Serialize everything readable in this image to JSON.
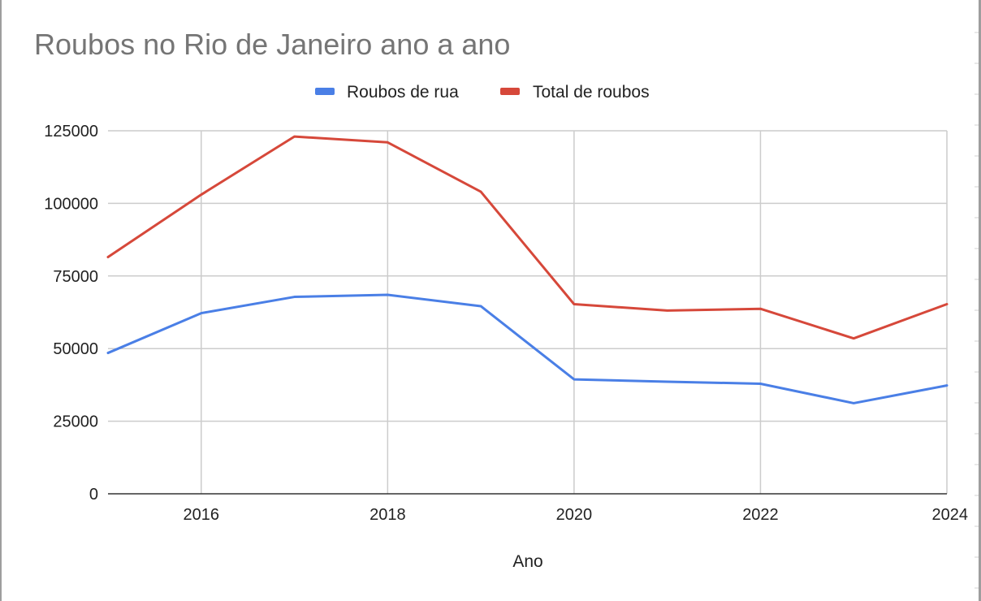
{
  "chart_data": {
    "type": "line",
    "title": "Roubos no Rio de Janeiro ano a ano",
    "xlabel": "Ano",
    "ylabel": "",
    "x": [
      2015,
      2016,
      2017,
      2018,
      2019,
      2020,
      2021,
      2022,
      2023,
      2024
    ],
    "xlim": [
      2015,
      2024
    ],
    "ylim": [
      0,
      125000
    ],
    "xticks": [
      "2016",
      "2018",
      "2020",
      "2022",
      "2024"
    ],
    "yticks": [
      "0",
      "25000",
      "50000",
      "75000",
      "100000",
      "125000"
    ],
    "grid": true,
    "legend_position": "top",
    "series": [
      {
        "name": "Roubos de rua",
        "color": "#4a7fe6",
        "values": [
          48500,
          62200,
          67800,
          68500,
          64600,
          39400,
          38600,
          37900,
          31200,
          37300
        ]
      },
      {
        "name": "Total de roubos",
        "color": "#d6483a",
        "values": [
          81500,
          103000,
          123000,
          121000,
          104000,
          65300,
          63100,
          63700,
          53500,
          65300
        ]
      }
    ]
  }
}
